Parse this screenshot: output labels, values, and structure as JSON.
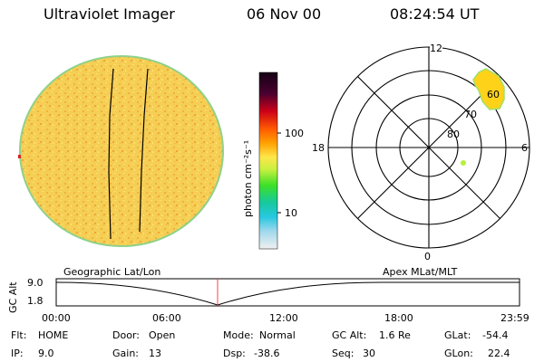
{
  "header": {
    "instrument": "Ultraviolet Imager",
    "date": "06 Nov 00",
    "time": "08:24:54 UT"
  },
  "colorbar": {
    "unit_label": "photon cm⁻²s⁻¹",
    "ticks": [
      {
        "value": 100,
        "label": "100"
      },
      {
        "value": 10,
        "label": "10"
      }
    ],
    "scale": "log"
  },
  "polar_plot": {
    "mlt_labels": {
      "top": "12",
      "left": "18",
      "right": "6",
      "bottom": "0"
    },
    "mlat_labels": [
      "60",
      "70",
      "80"
    ],
    "grid": true
  },
  "track": {
    "left_title": "Geographic Lat/Lon",
    "right_title": "Apex MLat/MLT",
    "y_axis_label": "GC Alt",
    "y_ticks": [
      "9.0",
      "1.8"
    ],
    "x_ticks": [
      "00:00",
      "06:00",
      "12:00",
      "18:00",
      "23:59"
    ],
    "marker_time": "08:24"
  },
  "status": {
    "row1": [
      {
        "key": "Flt:",
        "value": "HOME"
      },
      {
        "key": "Door:",
        "value": "Open"
      },
      {
        "key": "Mode:",
        "value": "Normal"
      },
      {
        "key": "GC Alt:",
        "value": "1.6 Re"
      },
      {
        "key": "GLat:",
        "value": "-54.4"
      }
    ],
    "row2": [
      {
        "key": "IP:",
        "value": "9.0"
      },
      {
        "key": "Gain:",
        "value": "13"
      },
      {
        "key": "Dsp:",
        "value": "-38.6"
      },
      {
        "key": "Seq:",
        "value": "30"
      },
      {
        "key": "GLon:",
        "value": "22.4"
      }
    ]
  },
  "colors": {
    "disk_fill": "#f3c84a",
    "disk_edge": "#8fd18a",
    "aurora": "#ffd21a",
    "marker_line": "#ff4444",
    "track_line": "#000000"
  }
}
